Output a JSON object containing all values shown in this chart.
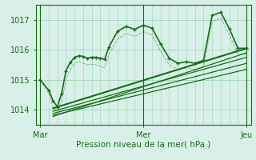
{
  "bg_color": "#d8f0e8",
  "grid_color": "#a8d8c0",
  "line_color": "#1a6e1a",
  "title": "Pression niveau de la mer( hPa )",
  "x_ticks": [
    0,
    24,
    48
  ],
  "x_tick_labels": [
    "Mar",
    "Mer",
    "Jeu"
  ],
  "y_ticks": [
    1014,
    1015,
    1016,
    1017
  ],
  "ylim": [
    1013.5,
    1017.5
  ],
  "xlim": [
    -1,
    49
  ],
  "series1_x": [
    0,
    2,
    3,
    4,
    5,
    6,
    7,
    8,
    9,
    10,
    11,
    12,
    13,
    14,
    15,
    16,
    18,
    20,
    22,
    24,
    26,
    28,
    30,
    32,
    34,
    36,
    38,
    40,
    42,
    44,
    46,
    48
  ],
  "series1_y": [
    1015.0,
    1014.65,
    1014.3,
    1014.1,
    1014.55,
    1015.3,
    1015.58,
    1015.75,
    1015.8,
    1015.78,
    1015.72,
    1015.75,
    1015.75,
    1015.72,
    1015.68,
    1016.1,
    1016.62,
    1016.78,
    1016.68,
    1016.82,
    1016.72,
    1016.2,
    1015.72,
    1015.55,
    1015.6,
    1015.55,
    1015.65,
    1017.15,
    1017.25,
    1016.7,
    1016.05,
    1016.05
  ],
  "series2_x": [
    0,
    2,
    3,
    4,
    5,
    6,
    7,
    8,
    9,
    10,
    11,
    12,
    13,
    14,
    15,
    16,
    18,
    20,
    22,
    24,
    26,
    28,
    30,
    32,
    34,
    36,
    38,
    40,
    42,
    44,
    46,
    48
  ],
  "series2_y": [
    1015.0,
    1014.55,
    1014.1,
    1013.9,
    1014.3,
    1015.0,
    1015.35,
    1015.55,
    1015.6,
    1015.55,
    1015.5,
    1015.52,
    1015.5,
    1015.45,
    1015.4,
    1015.85,
    1016.35,
    1016.55,
    1016.45,
    1016.6,
    1016.5,
    1015.95,
    1015.5,
    1015.35,
    1015.4,
    1015.35,
    1015.45,
    1016.95,
    1017.05,
    1016.5,
    1015.85,
    1015.85
  ],
  "trend_lines": [
    {
      "x": [
        3,
        48
      ],
      "y": [
        1014.05,
        1016.05
      ],
      "lw": 1.5
    },
    {
      "x": [
        3,
        48
      ],
      "y": [
        1013.95,
        1015.75
      ],
      "lw": 0.9
    },
    {
      "x": [
        3,
        48
      ],
      "y": [
        1013.88,
        1015.55
      ],
      "lw": 0.9
    },
    {
      "x": [
        3,
        48
      ],
      "y": [
        1013.82,
        1015.35
      ],
      "lw": 0.9
    },
    {
      "x": [
        3,
        48
      ],
      "y": [
        1013.78,
        1015.9
      ],
      "lw": 0.9
    }
  ]
}
